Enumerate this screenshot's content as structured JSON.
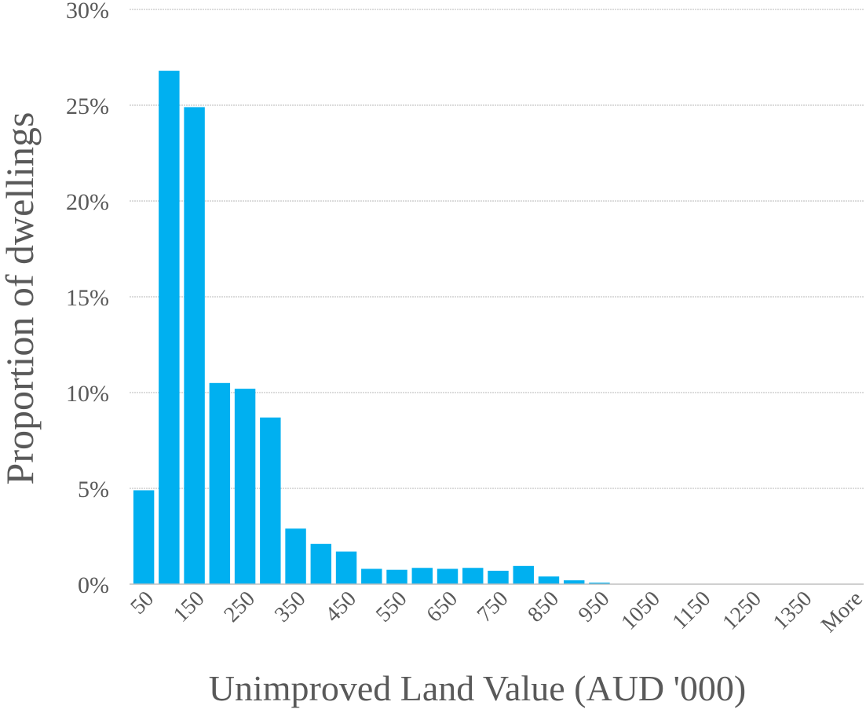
{
  "chart_data": {
    "type": "bar",
    "title": "",
    "xlabel": "Unimproved Land Value (AUD '000)",
    "ylabel": "Proportion of dwellings",
    "categories": [
      "50",
      "100",
      "150",
      "200",
      "250",
      "300",
      "350",
      "400",
      "450",
      "500",
      "550",
      "600",
      "650",
      "700",
      "750",
      "800",
      "850",
      "900",
      "950",
      "1000",
      "1050",
      "1100",
      "1150",
      "1200",
      "1250",
      "1300",
      "1350",
      "1400",
      "More"
    ],
    "x_tick_labels": [
      "50",
      "150",
      "250",
      "350",
      "450",
      "550",
      "650",
      "750",
      "850",
      "950",
      "1050",
      "1150",
      "1250",
      "1350",
      "More"
    ],
    "values": [
      4.9,
      26.8,
      24.9,
      10.5,
      10.2,
      8.7,
      2.9,
      2.1,
      1.7,
      0.8,
      0.75,
      0.85,
      0.8,
      0.85,
      0.7,
      0.95,
      0.4,
      0.2,
      0.08,
      0,
      0,
      0,
      0,
      0,
      0,
      0,
      0,
      0,
      0
    ],
    "ylim": [
      0,
      30
    ],
    "y_ticks": [
      "0%",
      "5%",
      "10%",
      "15%",
      "20%",
      "25%",
      "30%"
    ],
    "grid": true,
    "legend": "none",
    "bar_color": "#00b0f0"
  }
}
